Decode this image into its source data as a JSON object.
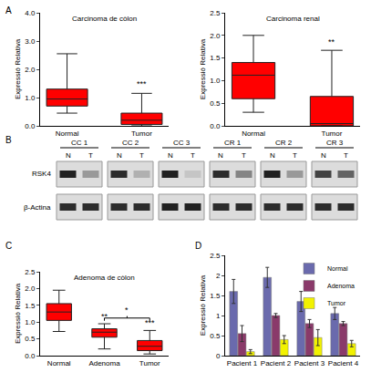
{
  "chart_data": [
    {
      "type": "box",
      "panel_label": "A",
      "title": "Carcinoma de còlon",
      "y_label": "Expressió Relativa",
      "categories": [
        "Normal",
        "Tumor"
      ],
      "boxes": {
        "min": [
          0.45,
          0
        ],
        "q1": [
          0.7,
          0.05
        ],
        "median": [
          0.95,
          0.2
        ],
        "q3": [
          1.3,
          0.45
        ],
        "max": [
          2.55,
          1.15
        ]
      },
      "color": "#ff0000",
      "ylim": [
        0,
        4
      ],
      "yticks": [
        {
          "value": 0,
          "label": "0.0"
        },
        {
          "value": 1,
          "label": "1.0"
        },
        {
          "value": 2,
          "label": "2.0"
        },
        {
          "value": 3,
          "label": "3.0"
        },
        {
          "value": 4,
          "label": "4.0"
        }
      ],
      "annotations": [
        {
          "category": "Tumor",
          "y": 1.25,
          "text": "***"
        }
      ]
    },
    {
      "type": "box",
      "title": "Carcinoma renal",
      "y_label": "Expressió Relativa",
      "categories": [
        "Normal",
        "Tumor"
      ],
      "boxes": {
        "min": [
          0.3,
          0
        ],
        "q1": [
          0.6,
          0
        ],
        "median": [
          1.12,
          0.05
        ],
        "q3": [
          1.4,
          0.65
        ],
        "max": [
          2.0,
          1.67
        ]
      },
      "color": "#ff0000",
      "ylim": [
        0,
        2.5
      ],
      "yticks": [
        {
          "value": 0,
          "label": "0.0"
        },
        {
          "value": 0.5,
          "label": "0.5"
        },
        {
          "value": 1,
          "label": "1.0"
        },
        {
          "value": 1.5,
          "label": "1.5"
        },
        {
          "value": 2,
          "label": "2.0"
        },
        {
          "value": 2.5,
          "label": "2.5"
        }
      ],
      "annotations": [
        {
          "category": "Tumor",
          "y": 1.72,
          "text": "**"
        }
      ]
    },
    {
      "type": "blot",
      "panel_label": "B",
      "groups": [
        "CC 1",
        "CC 2",
        "CC 3",
        "CR 1",
        "CR 2",
        "CR 3"
      ],
      "lanes": [
        "N",
        "T"
      ],
      "rows": [
        {
          "label": "RSK4",
          "intensity": {
            "N": [
              0.85,
              0.8,
              0.85,
              0.8,
              0.85,
              0.7
            ],
            "T": [
              0.3,
              0.2,
              0.1,
              0.4,
              0.3,
              0.55
            ]
          }
        },
        {
          "label": "β-Actina",
          "intensity": {
            "N": [
              0.8,
              0.8,
              0.85,
              0.8,
              0.8,
              0.8
            ],
            "T": [
              0.8,
              0.8,
              0.85,
              0.8,
              0.8,
              0.8
            ]
          }
        }
      ]
    },
    {
      "type": "box",
      "panel_label": "C",
      "title": "Adenoma de còlon",
      "y_label": "Expressió Relativa",
      "categories": [
        "Normal",
        "Adenoma",
        "Tumor"
      ],
      "boxes": {
        "min": [
          0.72,
          0.2,
          0.05
        ],
        "q1": [
          1.05,
          0.55,
          0.15
        ],
        "median": [
          1.3,
          0.7,
          0.28
        ],
        "q3": [
          1.55,
          0.8,
          0.45
        ],
        "max": [
          1.95,
          0.95,
          0.75
        ]
      },
      "color": "#ff0000",
      "ylim": [
        0,
        2.5
      ],
      "yticks": [
        {
          "value": 0,
          "label": "0.0"
        },
        {
          "value": 0.5,
          "label": "0.5"
        },
        {
          "value": 1,
          "label": "1.0"
        },
        {
          "value": 1.5,
          "label": "1.5"
        },
        {
          "value": 2,
          "label": "2.0"
        },
        {
          "value": 2.5,
          "label": "2.5"
        }
      ],
      "annotations": [
        {
          "category": "Adenoma",
          "y": 0.98,
          "text": "**"
        },
        {
          "category": "Tumor",
          "y": 0.78,
          "text": "***"
        }
      ],
      "bracket": {
        "from": "Adenoma",
        "to": "Tumor",
        "y": 1.12,
        "text": "*"
      }
    },
    {
      "type": "bar",
      "panel_label": "D",
      "y_label": "Expressió Relativa",
      "categories": [
        "Pacient 1",
        "Pacient 2",
        "Pacient 3",
        "Pacient 4"
      ],
      "series": [
        {
          "name": "Normal",
          "color": "#6a6aad",
          "values": [
            1.6,
            1.95,
            1.35,
            1.05
          ],
          "errors": [
            0.3,
            0.25,
            0.25,
            0.15
          ]
        },
        {
          "name": "Adenoma",
          "color": "#8a3a6a",
          "values": [
            0.55,
            1.0,
            0.8,
            0.8
          ],
          "errors": [
            0.2,
            0.05,
            0.1,
            0.05
          ]
        },
        {
          "name": "Tumor",
          "color": "#f2f200",
          "values": [
            0.1,
            0.4,
            0.45,
            0.3
          ],
          "errors": [
            0.05,
            0.1,
            0.2,
            0.08
          ]
        }
      ],
      "ylim": [
        0,
        2.5
      ],
      "yticks": [
        0,
        0.5,
        1,
        1.5,
        2,
        2.5
      ],
      "legend": "upper right"
    }
  ]
}
